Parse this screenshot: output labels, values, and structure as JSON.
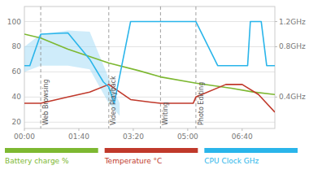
{
  "chart_data": {
    "type": "line",
    "xlim": [
      0,
      460
    ],
    "xticks": [
      {
        "value": 0,
        "label": "00:00"
      },
      {
        "value": 100,
        "label": "01:40"
      },
      {
        "value": 200,
        "label": "03:20"
      },
      {
        "value": 300,
        "label": "05:00"
      },
      {
        "value": 400,
        "label": "06:40"
      }
    ],
    "ylim": [
      15,
      112
    ],
    "yticks": [
      20,
      40,
      60,
      80,
      100
    ],
    "y2lim": [
      15,
      112
    ],
    "y2ticks": [
      {
        "value": 40,
        "label": "0.4GHz"
      },
      {
        "value": 80,
        "label": "0.8GHz"
      },
      {
        "value": 100,
        "label": "1.2GHz"
      }
    ],
    "grid": true,
    "legend": "bottom",
    "series": [
      {
        "name": "Battery charge %",
        "color": "#7db831",
        "x": [
          0,
          30,
          80,
          155,
          210,
          250,
          315,
          380,
          420,
          460
        ],
        "values": [
          90,
          87,
          78,
          67,
          61,
          56,
          51,
          47,
          44,
          42
        ]
      },
      {
        "name": "Temperature °C",
        "color": "#c0392b",
        "x": [
          0,
          30,
          80,
          120,
          155,
          195,
          230,
          250,
          310,
          315,
          370,
          400,
          430,
          460
        ],
        "values": [
          35,
          35,
          40,
          44,
          50,
          38,
          36,
          35,
          35,
          40,
          50,
          50,
          42,
          28
        ]
      },
      {
        "name": "CPU Clock GHz",
        "color": "#2ab5ea",
        "x": [
          0,
          10,
          30,
          80,
          120,
          145,
          155,
          165,
          195,
          220,
          250,
          315,
          355,
          370,
          380,
          410,
          415,
          435,
          445,
          455,
          460
        ],
        "values": [
          65,
          65,
          90,
          91,
          70,
          52,
          48,
          35,
          100,
          100,
          100,
          100,
          65,
          65,
          65,
          65,
          100,
          100,
          65,
          65,
          65
        ]
      }
    ],
    "cpu_band": {
      "color": "#a8ddf5",
      "x": [
        0,
        30,
        80,
        120,
        155,
        175
      ],
      "upper": [
        80,
        90,
        93,
        92,
        55,
        35
      ],
      "lower": [
        60,
        65,
        65,
        62,
        35,
        25
      ]
    },
    "annotations": [
      {
        "x": 30,
        "label": "Web Browsing"
      },
      {
        "x": 155,
        "label": "Video Playback"
      },
      {
        "x": 250,
        "label": "Writing"
      },
      {
        "x": 315,
        "label": "Photo Editing"
      }
    ]
  }
}
